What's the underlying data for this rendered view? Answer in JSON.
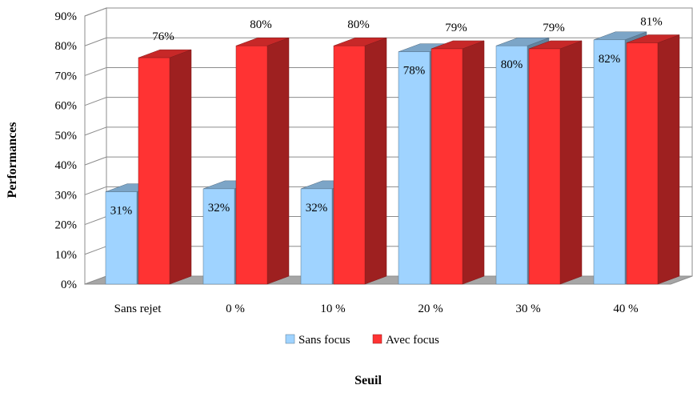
{
  "chart_data": {
    "type": "bar",
    "style": "3d-clustered-column",
    "categories": [
      "Sans rejet",
      "0  %",
      "10  %",
      "20  %",
      "30  %",
      "40  %"
    ],
    "series": [
      {
        "name": "Sans focus",
        "color": "#9fd3ff",
        "values": [
          31,
          32,
          32,
          78,
          80,
          82
        ],
        "data_labels": [
          "31%",
          "32%",
          "32%",
          "78%",
          "80%",
          "82%"
        ]
      },
      {
        "name": "Avec focus",
        "color": "#ff3333",
        "values": [
          76,
          80,
          80,
          79,
          79,
          81
        ],
        "data_labels": [
          "76%",
          "80%",
          "80%",
          "79%",
          "79%",
          "81%"
        ]
      }
    ],
    "ylabel": "Performances",
    "xlabel": "Seuil",
    "yticks": [
      "0%",
      "10%",
      "20%",
      "30%",
      "40%",
      "50%",
      "60%",
      "70%",
      "80%",
      "90%"
    ],
    "ylim": [
      0,
      90
    ],
    "grid": true,
    "legend_position": "bottom"
  }
}
